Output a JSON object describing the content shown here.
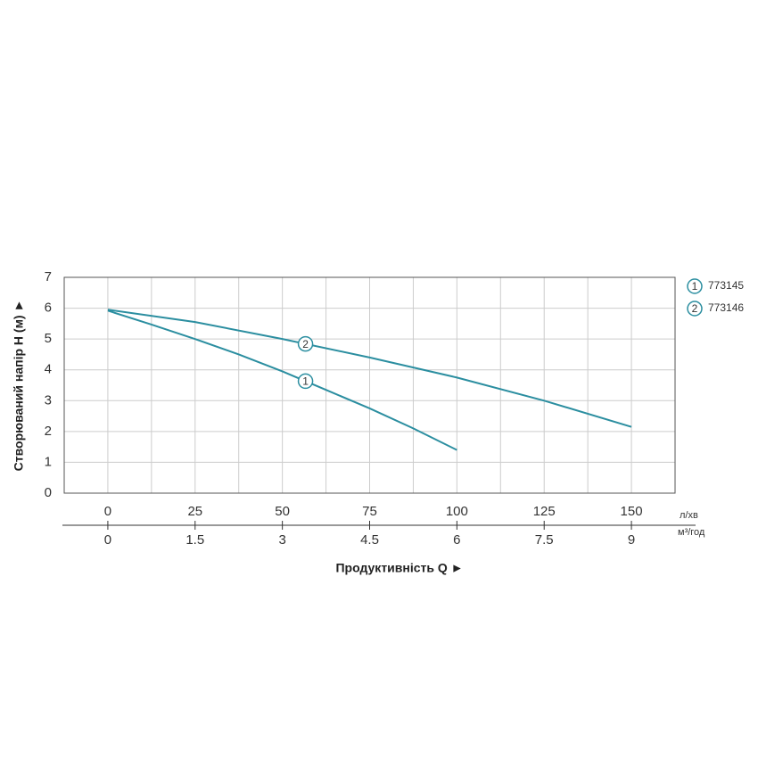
{
  "chart_data": {
    "type": "line",
    "y_label": "Створюваний напір H (м) ►",
    "x_label": "Продуктивність  Q ►",
    "x_unit": "л/хв",
    "x2_unit": "м³/год",
    "xlim": [
      -12.5,
      162.5
    ],
    "xticks": [
      0,
      25,
      50,
      75,
      100,
      125,
      150
    ],
    "xgrid": [
      0,
      12.5,
      25,
      37.5,
      50,
      62.5,
      75,
      87.5,
      100,
      112.5,
      125,
      137.5,
      150
    ],
    "x2lim": [
      -0.75,
      9.75
    ],
    "x2ticks": [
      0,
      1.5,
      3,
      4.5,
      6,
      7.5,
      9
    ],
    "ylim": [
      0,
      7
    ],
    "yticks": [
      0,
      1,
      2,
      3,
      4,
      5,
      6,
      7
    ],
    "grid": true,
    "legend": "right",
    "series": [
      {
        "name": "773145",
        "marker_label": "1",
        "color": "#2b8ea0",
        "x": [
          0,
          12.5,
          25,
          37.5,
          50,
          62.5,
          75,
          87.5,
          100
        ],
        "values": [
          5.92,
          5.47,
          5.0,
          4.5,
          3.95,
          3.35,
          2.75,
          2.1,
          1.4
        ]
      },
      {
        "name": "773146",
        "marker_label": "2",
        "color": "#2b8ea0",
        "x": [
          0,
          25,
          50,
          75,
          100,
          125,
          150
        ],
        "values": [
          5.95,
          5.55,
          5.0,
          4.4,
          3.75,
          3.0,
          2.15
        ]
      }
    ]
  }
}
